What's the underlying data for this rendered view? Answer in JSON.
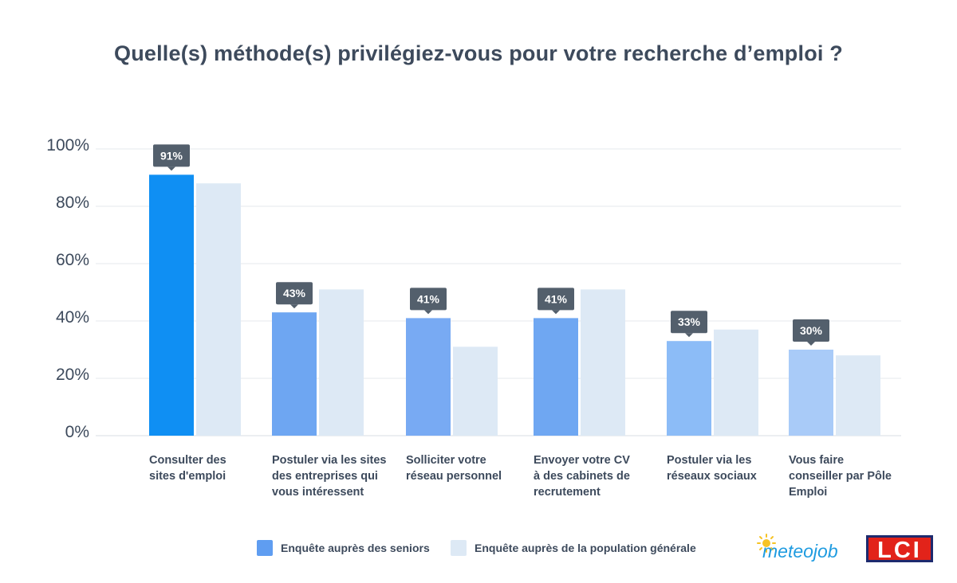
{
  "colors": {
    "seniors_first": "#0f8ff3",
    "seniors_others": [
      "#6ea6f2",
      "#78aaf3",
      "#6fa7f2",
      "#8cbcf7",
      "#a9cbf8"
    ],
    "general": "#dde9f5",
    "tooltip": "#535f6c",
    "grid": "#e6e9ee"
  },
  "chart_data": {
    "type": "bar",
    "title": "Quelle(s) méthode(s) privilégiez-vous pour votre recherche d’emploi ?",
    "categories": [
      "Consulter des sites d'emploi",
      "Postuler via les sites des entreprises qui vous intéressent",
      "Solliciter votre réseau personnel",
      "Envoyer votre CV à des cabinets de recrutement",
      "Postuler via les réseaux sociaux",
      "Vous faire conseiller par Pôle Emploi"
    ],
    "series": [
      {
        "name": "Enquête auprès des seniors",
        "values": [
          91,
          43,
          41,
          41,
          33,
          30
        ]
      },
      {
        "name": "Enquête auprès de la population générale",
        "values": [
          88,
          51,
          31,
          51,
          37,
          28
        ]
      }
    ],
    "data_labels": [
      "91%",
      "43%",
      "41%",
      "41%",
      "33%",
      "30%"
    ],
    "ylim": [
      0,
      100
    ],
    "yticks": [
      0,
      20,
      40,
      60,
      80,
      100
    ],
    "ytick_labels": [
      "0%",
      "20%",
      "40%",
      "60%",
      "80%",
      "100%"
    ],
    "grid": true,
    "legend_position": "bottom"
  },
  "branding": {
    "logo_meteojob": "meteojob",
    "logo_lci": "LCI"
  }
}
